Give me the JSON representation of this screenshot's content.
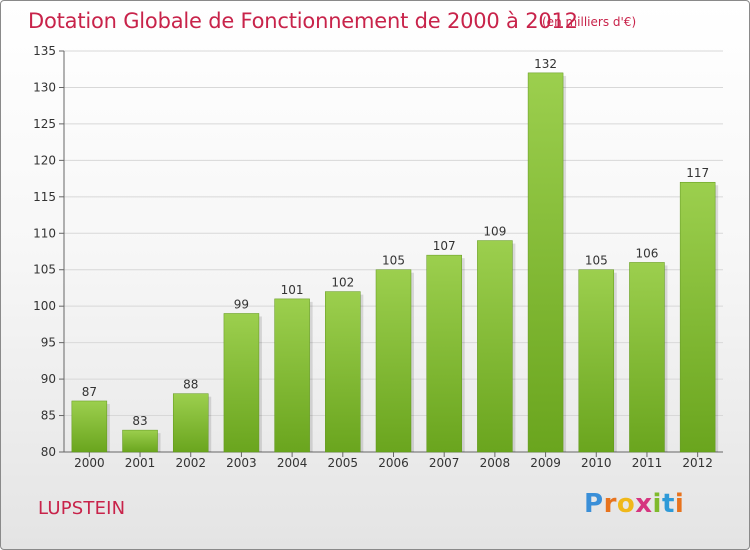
{
  "chart_data": {
    "type": "bar",
    "title": "Dotation Globale de Fonctionnement de 2000 à 2012",
    "unit_label": "(en milliers d'€)",
    "categories": [
      "2000",
      "2001",
      "2002",
      "2003",
      "2004",
      "2005",
      "2006",
      "2007",
      "2008",
      "2009",
      "2010",
      "2011",
      "2012"
    ],
    "values": [
      87,
      83,
      88,
      99,
      101,
      102,
      105,
      107,
      109,
      132,
      105,
      106,
      117
    ],
    "ylim": [
      80,
      135
    ],
    "yticks": [
      80,
      85,
      90,
      95,
      100,
      105,
      110,
      115,
      120,
      125,
      130,
      135
    ],
    "grid": true,
    "bar_color_top": "#9ccf4e",
    "bar_color_bottom": "#6aa51e",
    "title_color": "#c8234a"
  },
  "footer": {
    "city": "LUPSTEIN",
    "logo_letters": [
      "P",
      "r",
      "o",
      "x",
      "i",
      "t",
      "i"
    ]
  }
}
